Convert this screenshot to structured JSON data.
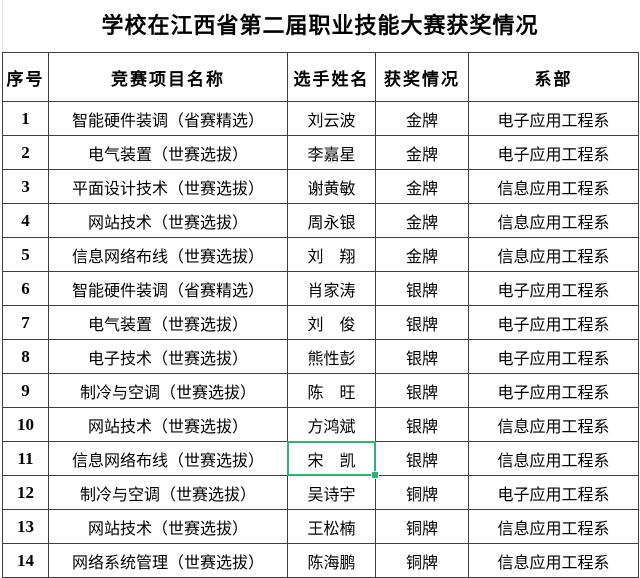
{
  "title": "学校在江西省第二届职业技能大赛获奖情况",
  "table": {
    "columns": [
      "序号",
      "竞赛项目名称",
      "选手姓名",
      "获奖情况",
      "系部"
    ],
    "rows": [
      {
        "no": "1",
        "event": "智能硬件装调（省赛精选）",
        "name": "刘云波",
        "award": "金牌",
        "department": "电子应用工程系"
      },
      {
        "no": "2",
        "event": "电气装置（世赛选拔）",
        "name": "李嘉星",
        "award": "金牌",
        "department": "电子应用工程系"
      },
      {
        "no": "3",
        "event": "平面设计技术（世赛选拔）",
        "name": "谢黄敏",
        "award": "金牌",
        "department": "信息应用工程系"
      },
      {
        "no": "4",
        "event": "网站技术（世赛选拔）",
        "name": "周永银",
        "award": "金牌",
        "department": "信息应用工程系"
      },
      {
        "no": "5",
        "event": "信息网络布线（世赛选拔）",
        "name": "刘　翔",
        "award": "金牌",
        "department": "信息应用工程系"
      },
      {
        "no": "6",
        "event": "智能硬件装调（省赛精选）",
        "name": "肖家涛",
        "award": "银牌",
        "department": "电子应用工程系"
      },
      {
        "no": "7",
        "event": "电气装置（世赛选拔）",
        "name": "刘　俊",
        "award": "银牌",
        "department": "电子应用工程系"
      },
      {
        "no": "8",
        "event": "电子技术（世赛选拔）",
        "name": "熊性彭",
        "award": "银牌",
        "department": "电子应用工程系"
      },
      {
        "no": "9",
        "event": "制冷与空调（世赛选拔）",
        "name": "陈　旺",
        "award": "银牌",
        "department": "电子应用工程系"
      },
      {
        "no": "10",
        "event": "网站技术（世赛选拔）",
        "name": "方鸿斌",
        "award": "银牌",
        "department": "信息应用工程系"
      },
      {
        "no": "11",
        "event": "信息网络布线（世赛选拔）",
        "name": "宋　凯",
        "award": "银牌",
        "department": "信息应用工程系"
      },
      {
        "no": "12",
        "event": "制冷与空调（世赛选拔）",
        "name": "吴诗宇",
        "award": "铜牌",
        "department": "电子应用工程系"
      },
      {
        "no": "13",
        "event": "网站技术（世赛选拔）",
        "name": "王松楠",
        "award": "铜牌",
        "department": "信息应用工程系"
      },
      {
        "no": "14",
        "event": "网络系统管理（世赛选拔）",
        "name": "陈海鹏",
        "award": "铜牌",
        "department": "信息应用工程系"
      }
    ],
    "selection": {
      "row_number": "11",
      "column": "选手姓名",
      "cell_value": "宋　凯"
    }
  },
  "colors": {
    "selection_green": "#2eb173",
    "grid_border": "#3e3e3e",
    "text": "#000000",
    "background": "#ffffff"
  }
}
